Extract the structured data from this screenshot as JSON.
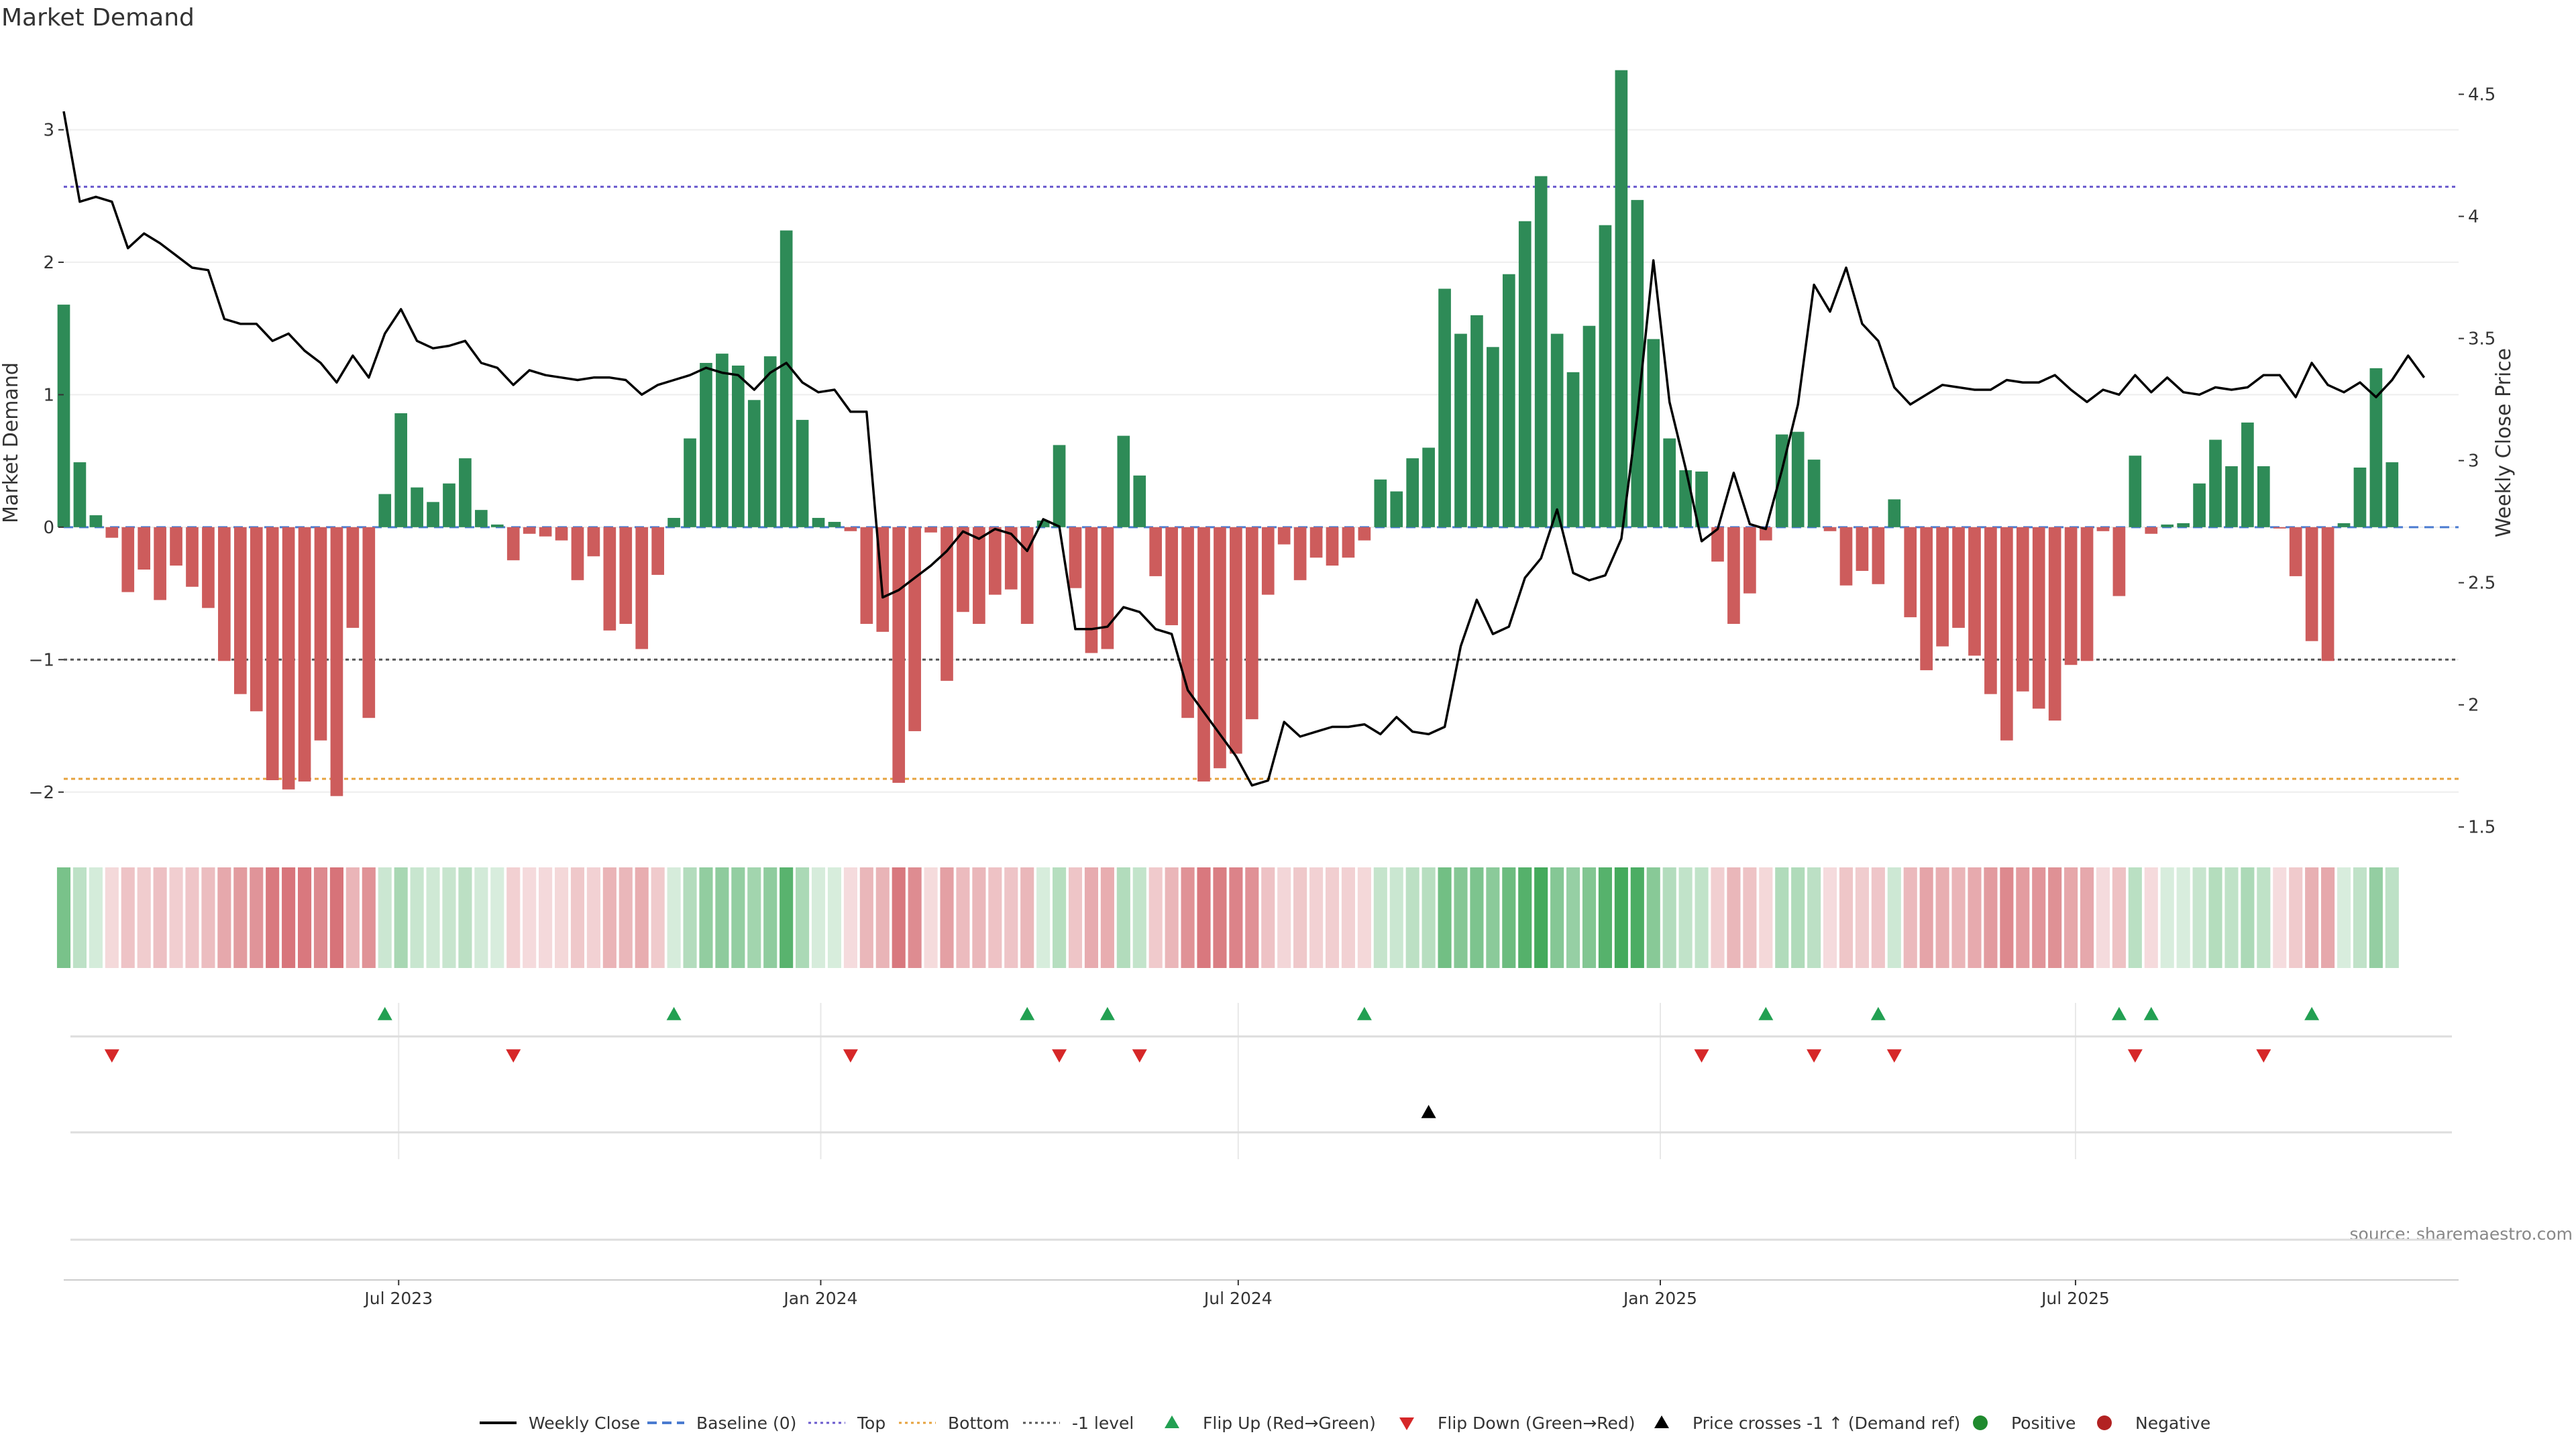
{
  "chart_data": {
    "type": "bar",
    "title": "Market Demand",
    "ylabel": "Market Demand",
    "y2label": "Weekly Close Price",
    "ylim": [
      -2.3,
      3.6
    ],
    "y2lim": [
      1.48,
      4.68
    ],
    "xlim": [
      "2023-02-05",
      "2025-12-15"
    ],
    "yticks": [
      {
        "v": 3,
        "label": "3"
      },
      {
        "v": 2,
        "label": "2"
      },
      {
        "v": 1,
        "label": "1"
      },
      {
        "v": 0,
        "label": "0"
      },
      {
        "v": -1,
        "label": "−1"
      },
      {
        "v": -2,
        "label": "−2"
      }
    ],
    "y2ticks": [
      {
        "v": 4.5,
        "label": "4.5"
      },
      {
        "v": 4,
        "label": "4"
      },
      {
        "v": 3.5,
        "label": "3.5"
      },
      {
        "v": 3,
        "label": "3"
      },
      {
        "v": 2.5,
        "label": "2.5"
      },
      {
        "v": 2,
        "label": "2"
      },
      {
        "v": 1.5,
        "label": "1.5"
      }
    ],
    "xticks": [
      {
        "date": "2023-07-01",
        "label": "Jul 2023"
      },
      {
        "date": "2024-01-01",
        "label": "Jan 2024"
      },
      {
        "date": "2024-07-01",
        "label": "Jul 2024"
      },
      {
        "date": "2025-01-01",
        "label": "Jan 2025"
      },
      {
        "date": "2025-07-01",
        "label": "Jul 2025"
      }
    ],
    "reference_lines": {
      "top": 2.57,
      "bottom": -1.9,
      "minus_one": -1.0,
      "baseline": 0
    },
    "first_week": "2023-02-05",
    "week_interval_days": 7,
    "demand": [
      1.68,
      0.49,
      0.09,
      -0.08,
      -0.49,
      -0.32,
      -0.55,
      -0.29,
      -0.45,
      -0.61,
      -1.01,
      -1.26,
      -1.39,
      -1.91,
      -1.98,
      -1.92,
      -1.61,
      -2.03,
      -0.76,
      -1.44,
      0.25,
      0.86,
      0.3,
      0.19,
      0.33,
      0.52,
      0.13,
      0.02,
      -0.25,
      -0.05,
      -0.07,
      -0.1,
      -0.4,
      -0.22,
      -0.78,
      -0.73,
      -0.92,
      -0.36,
      0.07,
      0.67,
      1.24,
      1.31,
      1.22,
      0.96,
      1.29,
      2.24,
      0.81,
      0.07,
      0.04,
      -0.03,
      -0.73,
      -0.79,
      -1.93,
      -1.54,
      -0.04,
      -1.16,
      -0.64,
      -0.73,
      -0.51,
      -0.47,
      -0.73,
      0.05,
      0.62,
      -0.46,
      -0.95,
      -0.92,
      0.69,
      0.39,
      -0.37,
      -0.74,
      -1.44,
      -1.92,
      -1.82,
      -1.71,
      -1.45,
      -0.51,
      -0.13,
      -0.4,
      -0.23,
      -0.29,
      -0.23,
      -0.1,
      0.36,
      0.27,
      0.52,
      0.6,
      1.8,
      1.46,
      1.6,
      1.36,
      1.91,
      2.31,
      2.65,
      1.46,
      1.17,
      1.52,
      2.28,
      3.45,
      2.47,
      1.42,
      0.67,
      0.43,
      0.42,
      -0.26,
      -0.73,
      -0.5,
      -0.1,
      0.7,
      0.72,
      0.51,
      -0.03,
      -0.44,
      -0.33,
      -0.43,
      0.21,
      -0.68,
      -1.08,
      -0.9,
      -0.76,
      -0.97,
      -1.26,
      -1.61,
      -1.24,
      -1.37,
      -1.46,
      -1.04,
      -1.01,
      -0.03,
      -0.52,
      0.54,
      -0.05,
      0.02,
      0.03,
      0.33,
      0.66,
      0.46,
      0.79,
      0.46,
      -0.01,
      -0.37,
      -0.86,
      -1.01,
      0.03,
      0.45,
      1.2,
      0.49
    ],
    "close": [
      4.43,
      4.06,
      4.08,
      4.06,
      3.87,
      3.93,
      3.89,
      3.84,
      3.79,
      3.78,
      3.58,
      3.56,
      3.56,
      3.49,
      3.52,
      3.45,
      3.4,
      3.32,
      3.43,
      3.34,
      3.52,
      3.62,
      3.49,
      3.46,
      3.47,
      3.49,
      3.4,
      3.38,
      3.31,
      3.37,
      3.35,
      3.34,
      3.33,
      3.34,
      3.34,
      3.33,
      3.27,
      3.31,
      3.33,
      3.35,
      3.38,
      3.36,
      3.35,
      3.29,
      3.36,
      3.4,
      3.32,
      3.28,
      3.29,
      3.2,
      3.2,
      2.44,
      2.47,
      2.52,
      2.57,
      2.63,
      2.71,
      2.68,
      2.72,
      2.7,
      2.63,
      2.76,
      2.73,
      2.31,
      2.31,
      2.32,
      2.4,
      2.38,
      2.31,
      2.29,
      2.06,
      1.97,
      1.88,
      1.79,
      1.67,
      1.69,
      1.93,
      1.87,
      1.89,
      1.91,
      1.91,
      1.92,
      1.88,
      1.95,
      1.89,
      1.88,
      1.91,
      2.24,
      2.43,
      2.29,
      2.32,
      2.52,
      2.6,
      2.8,
      2.54,
      2.51,
      2.53,
      2.68,
      3.19,
      3.82,
      3.24,
      2.97,
      2.67,
      2.72,
      2.95,
      2.74,
      2.72,
      2.96,
      3.23,
      3.72,
      3.61,
      3.79,
      3.56,
      3.49,
      3.3,
      3.23,
      3.27,
      3.31,
      3.3,
      3.29,
      3.29,
      3.33,
      3.32,
      3.32,
      3.35,
      3.29,
      3.24,
      3.29,
      3.27,
      3.35,
      3.28,
      3.34,
      3.28,
      3.27,
      3.3,
      3.29,
      3.3,
      3.35,
      3.35,
      3.26,
      3.4,
      3.31,
      3.28,
      3.32,
      3.26,
      3.33,
      3.43,
      3.34
    ],
    "flip_up_weeks": [
      20,
      38,
      60,
      65,
      81,
      106,
      113,
      128,
      130,
      140
    ],
    "flip_down_weeks": [
      3,
      28,
      49,
      62,
      67,
      102,
      109,
      114,
      129,
      137
    ],
    "price_cross_weeks": [
      85
    ],
    "source_text": "source: sharemaestro.com",
    "colors": {
      "positive": "#2e8b57",
      "negative": "#cd5c5c",
      "close": "#000000",
      "top": "#6a5acd",
      "bottom": "#e6a23c",
      "minus_one": "#555555",
      "baseline": "#4a7bd0",
      "flip_up": "#22a052",
      "flip_down": "#d62728",
      "cross": "#000000",
      "heat_pos": "#2fa04a",
      "heat_neg": "#c9424a"
    },
    "legend": [
      {
        "label": "Weekly Close",
        "marker": "line",
        "color": "#000000"
      },
      {
        "label": "Baseline (0)",
        "marker": "dash",
        "color": "#4a7bd0"
      },
      {
        "label": "Top",
        "marker": "dot",
        "color": "#6a5acd"
      },
      {
        "label": "Bottom",
        "marker": "dot",
        "color": "#e6a23c"
      },
      {
        "label": "-1 level",
        "marker": "dot",
        "color": "#555555"
      },
      {
        "label": "Flip Up (Red→Green)",
        "marker": "tri-up",
        "color": "#22a052"
      },
      {
        "label": "Flip Down (Green→Red)",
        "marker": "tri-down",
        "color": "#d62728"
      },
      {
        "label": "Price crosses -1 ↑ (Demand ref)",
        "marker": "tri-up",
        "color": "#000000"
      },
      {
        "label": "Positive",
        "marker": "circle",
        "color": "#1f8a2e"
      },
      {
        "label": "Negative",
        "marker": "circle",
        "color": "#b22222"
      }
    ]
  }
}
